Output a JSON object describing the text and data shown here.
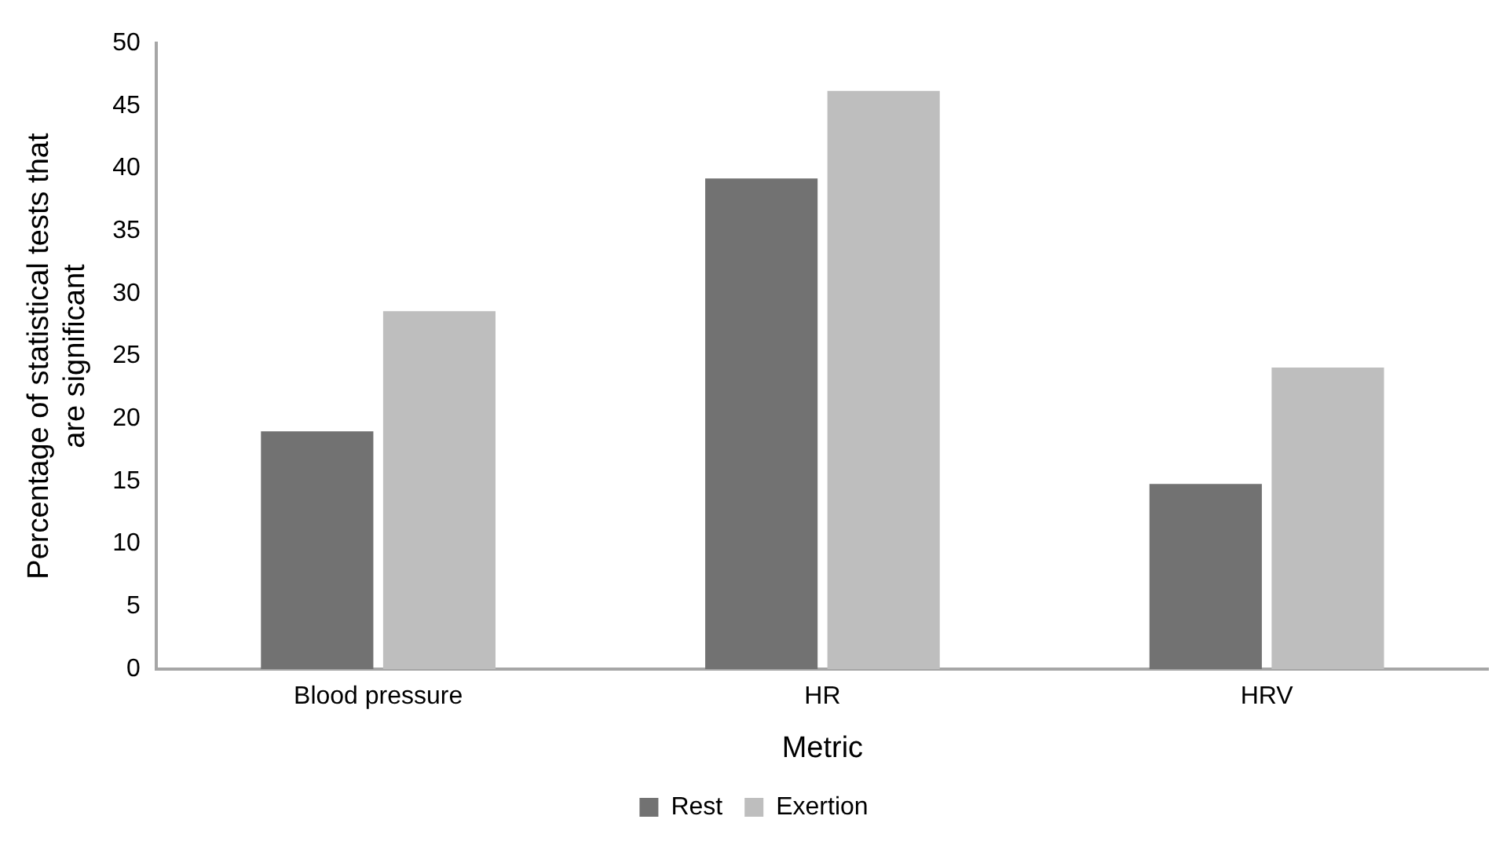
{
  "chart_data": {
    "type": "bar",
    "xlabel": "Metric",
    "ylabel": "Percentage of statistical tests that are significant",
    "categories": [
      "Blood pressure",
      "HR",
      "HRV"
    ],
    "series": [
      {
        "name": "Rest",
        "color": "#727272",
        "values": [
          19,
          39.2,
          14.8
        ]
      },
      {
        "name": "Exertion",
        "color": "#bebebe",
        "values": [
          28.6,
          46.2,
          24.1
        ]
      }
    ],
    "ylim": [
      0,
      50
    ],
    "yticks": [
      0,
      5,
      10,
      15,
      20,
      25,
      30,
      35,
      40,
      45,
      50
    ],
    "grid": false,
    "legend": "bottom"
  }
}
